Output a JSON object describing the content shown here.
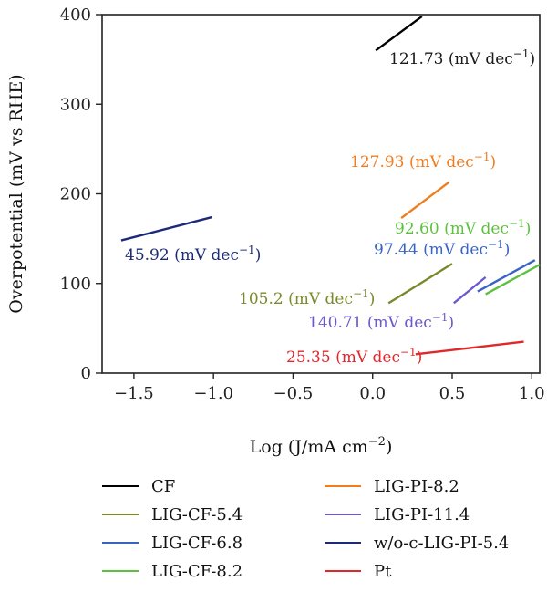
{
  "chart_data": {
    "type": "line",
    "xlabel": "Log (J/mA cm−2)",
    "xlabel_main": "Log (J/mA cm",
    "xlabel_sup": "−2",
    "xlabel_close": ")",
    "ylabel": "Overpotential (mV vs RHE)",
    "xlim": [
      -1.7,
      1.05
    ],
    "ylim": [
      0,
      400
    ],
    "xticks": [
      -1.5,
      -1.0,
      -0.5,
      0.0,
      0.5,
      1.0
    ],
    "xtick_labels": [
      "−1.5",
      "−1.0",
      "−0.5",
      "0.0",
      "0.5",
      "1.0"
    ],
    "yticks": [
      0,
      100,
      200,
      300,
      400
    ],
    "ytick_labels": [
      "0",
      "100",
      "200",
      "300",
      "400"
    ],
    "grid": false,
    "legend_position": "bottom",
    "series": [
      {
        "name": "CF",
        "color": "#000000",
        "x": [
          0.02,
          0.31
        ],
        "y": [
          360,
          398
        ],
        "annotation": "121.73",
        "annotation_color": "#1a1a1a"
      },
      {
        "name": "LIG-CF-5.4",
        "color": "#7a8a2a",
        "x": [
          0.1,
          0.5
        ],
        "y": [
          78,
          122
        ],
        "annotation": "105.2",
        "annotation_color": "#7a8a2a"
      },
      {
        "name": "LIG-CF-6.8",
        "color": "#3a63c4",
        "x": [
          0.66,
          1.02
        ],
        "y": [
          91,
          126
        ],
        "annotation": "97.44",
        "annotation_color": "#3a63c4"
      },
      {
        "name": "LIG-CF-8.2",
        "color": "#5cc23e",
        "x": [
          0.71,
          1.05
        ],
        "y": [
          88,
          121
        ],
        "annotation": "92.60",
        "annotation_color": "#5cc23e"
      },
      {
        "name": "LIG-PI-8.2",
        "color": "#f07d1f",
        "x": [
          0.18,
          0.48
        ],
        "y": [
          173,
          213
        ],
        "annotation": "127.93",
        "annotation_color": "#f07d1f"
      },
      {
        "name": "LIG-PI-11.4",
        "color": "#6a5acd",
        "x": [
          0.51,
          0.71
        ],
        "y": [
          78,
          107
        ],
        "annotation": "140.71",
        "annotation_color": "#6a5acd"
      },
      {
        "name": "w/o-c-LIG-PI-5.4",
        "color": "#1c2a7a",
        "x": [
          -1.58,
          -1.01
        ],
        "y": [
          148,
          174
        ],
        "annotation": "45.92",
        "annotation_color": "#1c2a7a"
      },
      {
        "name": "Pt",
        "color": "#e0282a",
        "x": [
          0.27,
          0.95
        ],
        "y": [
          21,
          35
        ],
        "annotation": "25.35",
        "annotation_color": "#e0282a"
      }
    ],
    "annotation_unit_main": "(mV dec",
    "annotation_unit_sup": "−1",
    "annotation_unit_close": ")"
  }
}
